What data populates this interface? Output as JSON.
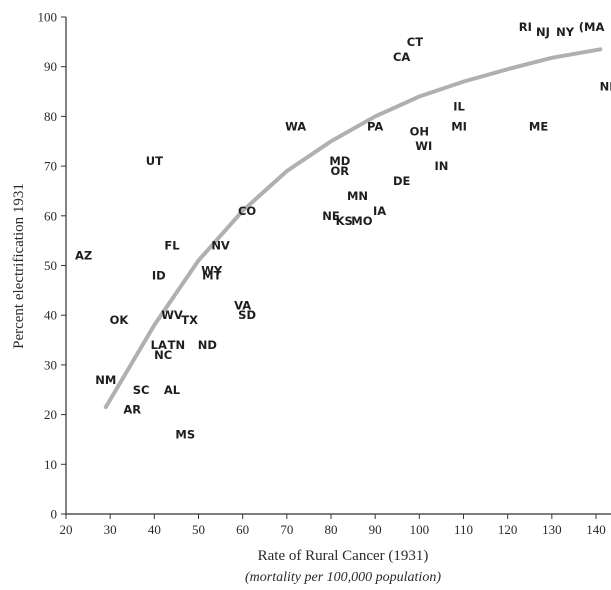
{
  "chart_data": {
    "type": "scatter",
    "xlabel": "Rate of Rural Cancer (1931)",
    "xlabel_sub": "(mortality per 100,000 population)",
    "ylabel": "Percent electrification 1931",
    "xlim": [
      20,
      140
    ],
    "ylim": [
      0,
      100
    ],
    "x_ticks": [
      "20",
      "30",
      "40",
      "50",
      "60",
      "70",
      "80",
      "90",
      "100",
      "110",
      "120",
      "130",
      "140"
    ],
    "y_ticks": [
      "0",
      "10",
      "20",
      "30",
      "40",
      "50",
      "60",
      "70",
      "80",
      "90",
      "100"
    ],
    "trend_color": "#b0b0b0",
    "points": [
      {
        "label": "AZ",
        "x": 24,
        "y": 52
      },
      {
        "label": "UT",
        "x": 40,
        "y": 71
      },
      {
        "label": "FL",
        "x": 44,
        "y": 54
      },
      {
        "label": "NV",
        "x": 55,
        "y": 54
      },
      {
        "label": "ID",
        "x": 41,
        "y": 48
      },
      {
        "label": "WY",
        "x": 53,
        "y": 49
      },
      {
        "label": "MT",
        "x": 53,
        "y": 48
      },
      {
        "label": "CO",
        "x": 61,
        "y": 61
      },
      {
        "label": "OK",
        "x": 32,
        "y": 39
      },
      {
        "label": "WV",
        "x": 44,
        "y": 40
      },
      {
        "label": "TX",
        "x": 48,
        "y": 39
      },
      {
        "label": "VA",
        "x": 60,
        "y": 42
      },
      {
        "label": "SD",
        "x": 61,
        "y": 40
      },
      {
        "label": "LA",
        "x": 41,
        "y": 34
      },
      {
        "label": "TN",
        "x": 45,
        "y": 34
      },
      {
        "label": "ND",
        "x": 52,
        "y": 34
      },
      {
        "label": "NC",
        "x": 42,
        "y": 32
      },
      {
        "label": "NM",
        "x": 29,
        "y": 27
      },
      {
        "label": "SC",
        "x": 37,
        "y": 25
      },
      {
        "label": "AL",
        "x": 44,
        "y": 25
      },
      {
        "label": "AR",
        "x": 35,
        "y": 21
      },
      {
        "label": "MS",
        "x": 47,
        "y": 16
      },
      {
        "label": "WA",
        "x": 72,
        "y": 78
      },
      {
        "label": "MD",
        "x": 82,
        "y": 71
      },
      {
        "label": "OR",
        "x": 82,
        "y": 69
      },
      {
        "label": "MN",
        "x": 86,
        "y": 64
      },
      {
        "label": "NE",
        "x": 80,
        "y": 60
      },
      {
        "label": "KS",
        "x": 83,
        "y": 59
      },
      {
        "label": "MO",
        "x": 87,
        "y": 59
      },
      {
        "label": "IA",
        "x": 91,
        "y": 61
      },
      {
        "label": "PA",
        "x": 90,
        "y": 78
      },
      {
        "label": "CT",
        "x": 99,
        "y": 95
      },
      {
        "label": "CA",
        "x": 96,
        "y": 92
      },
      {
        "label": "OH",
        "x": 100,
        "y": 77
      },
      {
        "label": "WI",
        "x": 101,
        "y": 74
      },
      {
        "label": "DE",
        "x": 96,
        "y": 67
      },
      {
        "label": "IN",
        "x": 105,
        "y": 70
      },
      {
        "label": "IL",
        "x": 109,
        "y": 82
      },
      {
        "label": "MI",
        "x": 109,
        "y": 78
      },
      {
        "label": "ME",
        "x": 127,
        "y": 78
      },
      {
        "label": "RI",
        "x": 124,
        "y": 98
      },
      {
        "label": "NJ",
        "x": 128,
        "y": 97
      },
      {
        "label": "NY",
        "x": 133,
        "y": 97
      },
      {
        "label": "(MA",
        "x": 139,
        "y": 98
      },
      {
        "label": "NH",
        "x": 143,
        "y": 86
      }
    ],
    "trend": [
      [
        29,
        21.5
      ],
      [
        40,
        38
      ],
      [
        50,
        51
      ],
      [
        60,
        61
      ],
      [
        70,
        69
      ],
      [
        80,
        75
      ],
      [
        90,
        80
      ],
      [
        100,
        84
      ],
      [
        110,
        87
      ],
      [
        120,
        89.5
      ],
      [
        130,
        91.8
      ],
      [
        141,
        93.5
      ]
    ]
  }
}
